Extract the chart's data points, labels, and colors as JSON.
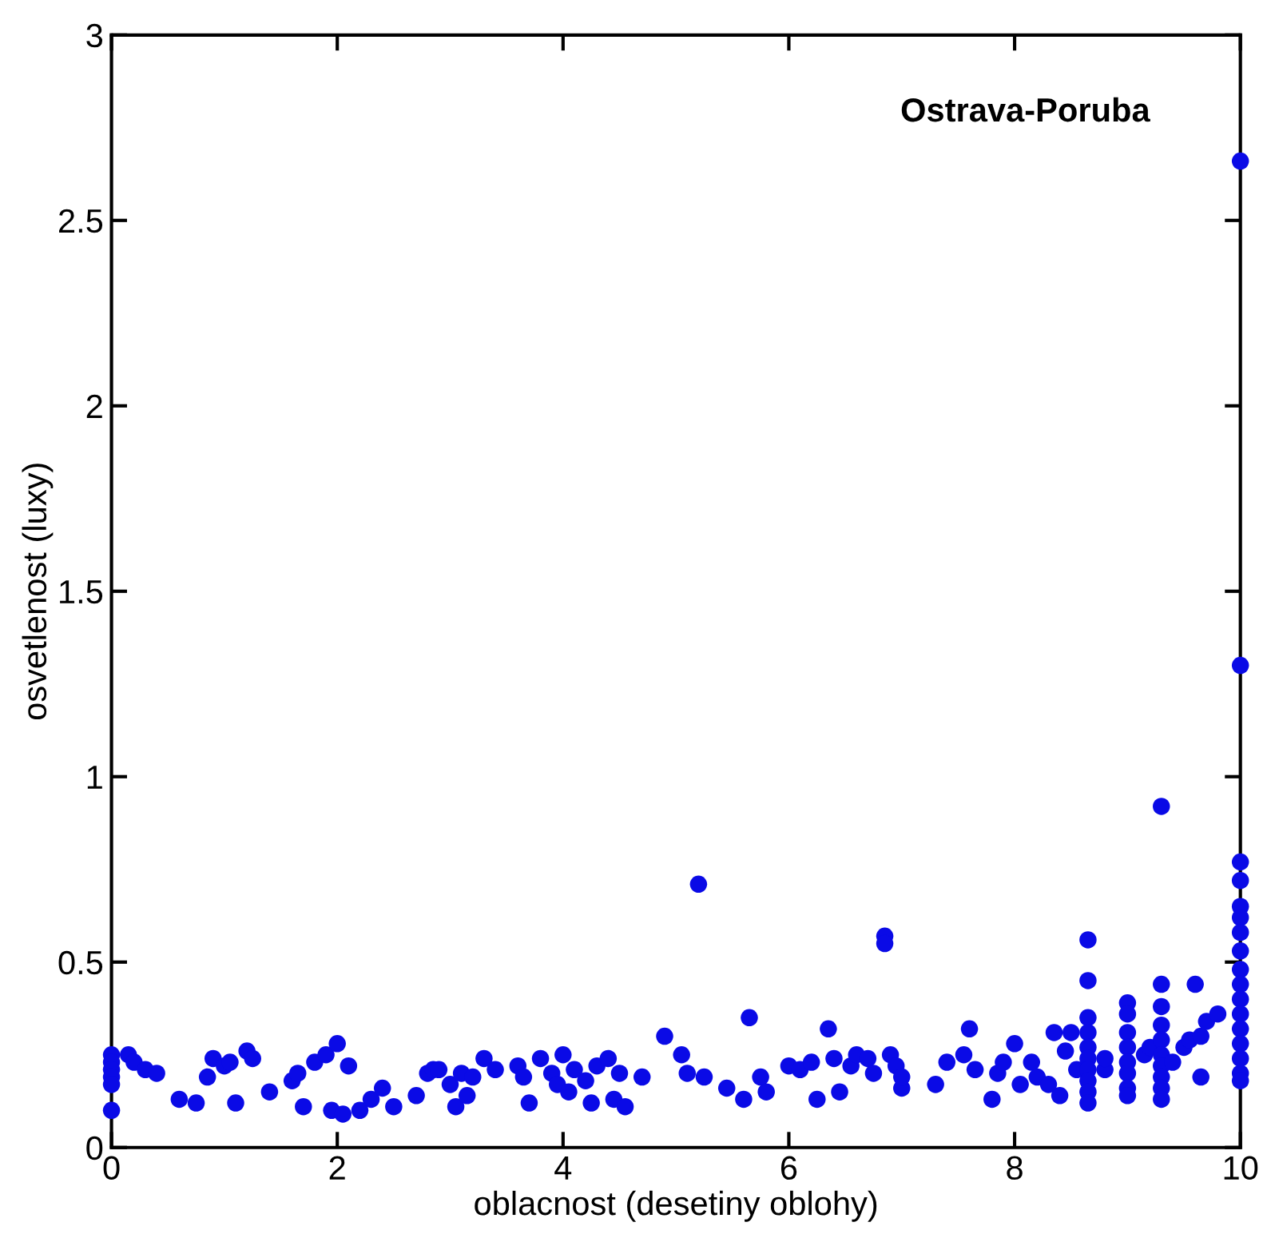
{
  "chart_data": {
    "type": "scatter",
    "xlabel": "oblacnost (desetiny oblohy)",
    "ylabel": "osvetlenost (luxy)",
    "annotations": [
      "Ostrava-Poruba"
    ],
    "xlim": [
      0,
      10
    ],
    "ylim": [
      0,
      3
    ],
    "xticks": [
      0,
      2,
      4,
      6,
      8,
      10
    ],
    "yticks": [
      0,
      0.5,
      1,
      1.5,
      2,
      2.5,
      3
    ],
    "grid": false,
    "marker": "circle",
    "series": [
      {
        "color": "#0a0ae6",
        "x": [
          0,
          0,
          0,
          0,
          0,
          0,
          0.15,
          0.2,
          0.3,
          0.4,
          0.6,
          0.75,
          0.85,
          0.9,
          1.0,
          1.05,
          1.1,
          1.2,
          1.25,
          1.4,
          1.6,
          1.65,
          1.7,
          1.8,
          1.9,
          1.95,
          2.0,
          2.05,
          2.1,
          2.2,
          2.3,
          2.4,
          2.5,
          2.7,
          2.8,
          2.85,
          2.9,
          3.0,
          3.05,
          3.1,
          3.2,
          3.3,
          3.15,
          3.4,
          3.6,
          3.65,
          3.7,
          3.8,
          3.9,
          3.95,
          4.0,
          4.05,
          4.1,
          4.2,
          4.25,
          4.3,
          4.4,
          4.45,
          4.5,
          4.55,
          4.7,
          4.9,
          5.05,
          5.1,
          5.2,
          5.25,
          5.45,
          5.65,
          5.6,
          5.75,
          5.8,
          6.0,
          6.1,
          6.2,
          6.25,
          6.35,
          6.4,
          6.45,
          6.55,
          6.6,
          6.7,
          6.75,
          6.85,
          6.85,
          6.9,
          6.95,
          7.0,
          7.0,
          7.3,
          7.4,
          7.55,
          7.6,
          7.65,
          7.8,
          7.85,
          7.9,
          8.0,
          8.05,
          8.15,
          8.2,
          8.3,
          8.35,
          8.4,
          8.45,
          8.5,
          8.55,
          8.65,
          8.65,
          8.65,
          8.65,
          8.65,
          8.65,
          8.65,
          8.65,
          8.65,
          8.65,
          8.8,
          8.8,
          9.0,
          9.0,
          9.0,
          9.0,
          9.0,
          9.0,
          9.0,
          9.0,
          9.15,
          9.2,
          9.3,
          9.3,
          9.3,
          9.3,
          9.3,
          9.3,
          9.3,
          9.3,
          9.3,
          9.3,
          9.4,
          9.5,
          9.55,
          9.6,
          9.65,
          9.65,
          9.7,
          9.8,
          10,
          10,
          10,
          10,
          10,
          10,
          10,
          10,
          10,
          10,
          10,
          10,
          10,
          10,
          10,
          10,
          10
        ],
        "values": [
          0.25,
          0.23,
          0.21,
          0.19,
          0.17,
          0.1,
          0.25,
          0.23,
          0.21,
          0.2,
          0.13,
          0.12,
          0.19,
          0.24,
          0.22,
          0.23,
          0.12,
          0.26,
          0.24,
          0.15,
          0.18,
          0.2,
          0.11,
          0.23,
          0.25,
          0.1,
          0.28,
          0.09,
          0.22,
          0.1,
          0.13,
          0.16,
          0.11,
          0.14,
          0.2,
          0.21,
          0.21,
          0.17,
          0.11,
          0.2,
          0.19,
          0.24,
          0.14,
          0.21,
          0.22,
          0.19,
          0.12,
          0.24,
          0.2,
          0.17,
          0.25,
          0.15,
          0.21,
          0.18,
          0.12,
          0.22,
          0.24,
          0.13,
          0.2,
          0.11,
          0.19,
          0.3,
          0.25,
          0.2,
          0.71,
          0.19,
          0.16,
          0.35,
          0.13,
          0.19,
          0.15,
          0.22,
          0.21,
          0.23,
          0.13,
          0.32,
          0.24,
          0.15,
          0.22,
          0.25,
          0.24,
          0.2,
          0.57,
          0.55,
          0.25,
          0.22,
          0.16,
          0.19,
          0.17,
          0.23,
          0.25,
          0.32,
          0.21,
          0.13,
          0.2,
          0.23,
          0.28,
          0.17,
          0.23,
          0.19,
          0.17,
          0.31,
          0.14,
          0.26,
          0.31,
          0.21,
          0.56,
          0.45,
          0.35,
          0.31,
          0.27,
          0.24,
          0.21,
          0.18,
          0.15,
          0.12,
          0.21,
          0.24,
          0.39,
          0.36,
          0.31,
          0.27,
          0.23,
          0.2,
          0.16,
          0.14,
          0.25,
          0.27,
          0.92,
          0.44,
          0.38,
          0.33,
          0.29,
          0.25,
          0.22,
          0.19,
          0.16,
          0.13,
          0.23,
          0.27,
          0.29,
          0.44,
          0.3,
          0.19,
          0.34,
          0.36,
          2.66,
          1.3,
          0.77,
          0.72,
          0.65,
          0.62,
          0.58,
          0.53,
          0.48,
          0.44,
          0.4,
          0.36,
          0.32,
          0.28,
          0.24,
          0.2,
          0.18
        ]
      }
    ]
  }
}
